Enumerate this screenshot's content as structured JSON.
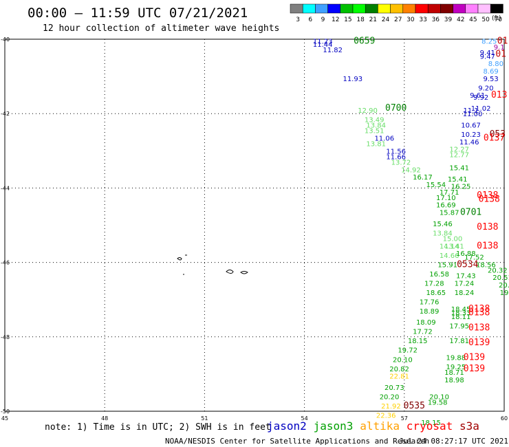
{
  "header": {
    "title": "00:00 – 11:59 UTC 07/21/2021",
    "subtitle": "12 hour collection of altimeter wave heights"
  },
  "legend": {
    "unit": "(ft)",
    "bins": [
      {
        "color": "#808080",
        "label": "3"
      },
      {
        "color": "#00ffff",
        "label": "6"
      },
      {
        "color": "#40a0ff",
        "label": "9"
      },
      {
        "color": "#0000ff",
        "label": "12"
      },
      {
        "color": "#00c000",
        "label": "15"
      },
      {
        "color": "#00ff00",
        "label": "18"
      },
      {
        "color": "#008000",
        "label": "21"
      },
      {
        "color": "#ffff00",
        "label": "24"
      },
      {
        "color": "#ffc000",
        "label": "27"
      },
      {
        "color": "#ff8000",
        "label": "30"
      },
      {
        "color": "#ff0000",
        "label": "33"
      },
      {
        "color": "#c00000",
        "label": "36"
      },
      {
        "color": "#800000",
        "label": "39"
      },
      {
        "color": "#c000c0",
        "label": "42"
      },
      {
        "color": "#ff80ff",
        "label": "45"
      },
      {
        "color": "#ffc0ff",
        "label": "50"
      },
      {
        "color": "#000000",
        "label": "70"
      }
    ]
  },
  "axes": {
    "lon_labels": [
      "45",
      "48",
      "51",
      "54",
      "57",
      "60"
    ],
    "lat_labels": [
      "-40",
      "-42",
      "-44",
      "-46",
      "-48",
      "-50"
    ],
    "lon_range": [
      45,
      60
    ],
    "lat_range": [
      -40,
      -50
    ]
  },
  "satellites": [
    {
      "name": "jason2",
      "color": "#0000c0"
    },
    {
      "name": "jason3",
      "color": "#00a000"
    },
    {
      "name": "altika",
      "color": "#ffa000"
    },
    {
      "name": "cryosat",
      "color": "#ff0000"
    },
    {
      "name": "s3a",
      "color": "#a00000"
    }
  ],
  "note": "note: 1) Time is in UTC; 2) SWH is in feet",
  "credit": "NOAA/NESDIS Center for Satellite Applications and Research",
  "timestamp": "Jul 24 08:27:17 UTC 2021",
  "obs": [
    {
      "lon": 55.8,
      "lat": -40.05,
      "v": "0659",
      "c": "#008000",
      "k": "time"
    },
    {
      "lon": 54.55,
      "lat": -40.05,
      "v": "11.23",
      "c": "#0000c0"
    },
    {
      "lon": 54.55,
      "lat": -40.13,
      "v": "11.44",
      "c": "#0000c0"
    },
    {
      "lon": 54.85,
      "lat": -40.28,
      "v": "11.82",
      "c": "#0000c0"
    },
    {
      "lon": 55.45,
      "lat": -41.05,
      "v": "11.93",
      "c": "#0000c0"
    },
    {
      "lon": 56.75,
      "lat": -41.85,
      "v": "0700",
      "c": "#008000",
      "k": "time"
    },
    {
      "lon": 55.9,
      "lat": -41.9,
      "v": "12.90",
      "c": "#66dd66"
    },
    {
      "lon": 56.1,
      "lat": -42.15,
      "v": "13.49",
      "c": "#66dd66"
    },
    {
      "lon": 56.15,
      "lat": -42.3,
      "v": "13.84",
      "c": "#66dd66"
    },
    {
      "lon": 56.1,
      "lat": -42.45,
      "v": "13.51",
      "c": "#66dd66"
    },
    {
      "lon": 56.4,
      "lat": -42.65,
      "v": "11.06",
      "c": "#0000c0"
    },
    {
      "lon": 56.15,
      "lat": -42.8,
      "v": "13.81",
      "c": "#66dd66"
    },
    {
      "lon": 56.75,
      "lat": -43.0,
      "v": "11.56",
      "c": "#0000c0"
    },
    {
      "lon": 56.75,
      "lat": -43.15,
      "v": "11.66",
      "c": "#0000c0"
    },
    {
      "lon": 56.9,
      "lat": -43.3,
      "v": "13.72",
      "c": "#66dd66"
    },
    {
      "lon": 57.2,
      "lat": -43.5,
      "v": "14.92",
      "c": "#66dd66"
    },
    {
      "lon": 57.55,
      "lat": -43.7,
      "v": "16.17",
      "c": "#00a000"
    },
    {
      "lon": 57.95,
      "lat": -43.9,
      "v": "15.54",
      "c": "#00a000"
    },
    {
      "lon": 58.35,
      "lat": -44.1,
      "v": "17.71",
      "c": "#00a000"
    },
    {
      "lon": 58.25,
      "lat": -44.25,
      "v": "17.10",
      "c": "#00a000"
    },
    {
      "lon": 58.25,
      "lat": -44.45,
      "v": "16.69",
      "c": "#00a000"
    },
    {
      "lon": 58.35,
      "lat": -44.65,
      "v": "15.87",
      "c": "#00a000"
    },
    {
      "lon": 58.15,
      "lat": -44.95,
      "v": "15.46",
      "c": "#00a000"
    },
    {
      "lon": 58.15,
      "lat": -45.2,
      "v": "13.84",
      "c": "#66dd66"
    },
    {
      "lon": 58.45,
      "lat": -45.35,
      "v": "15.00",
      "c": "#66dd66"
    },
    {
      "lon": 58.35,
      "lat": -45.55,
      "v": "14.14",
      "c": "#66dd66"
    },
    {
      "lon": 58.5,
      "lat": -45.55,
      "v": "13.41",
      "c": "#66dd66"
    },
    {
      "lon": 58.35,
      "lat": -45.8,
      "v": "14.66",
      "c": "#66dd66"
    },
    {
      "lon": 58.85,
      "lat": -45.75,
      "v": "16.88",
      "c": "#00a000"
    },
    {
      "lon": 58.3,
      "lat": -46.05,
      "v": "15.91",
      "c": "#00a000"
    },
    {
      "lon": 58.9,
      "lat": -46.05,
      "v": "0534",
      "c": "#a00000",
      "k": "time"
    },
    {
      "lon": 58.05,
      "lat": -46.3,
      "v": "16.58",
      "c": "#00a000"
    },
    {
      "lon": 58.85,
      "lat": -46.35,
      "v": "17.43",
      "c": "#00a000"
    },
    {
      "lon": 57.9,
      "lat": -46.55,
      "v": "17.28",
      "c": "#00a000"
    },
    {
      "lon": 58.8,
      "lat": -46.55,
      "v": "17.24",
      "c": "#00a000"
    },
    {
      "lon": 57.95,
      "lat": -46.8,
      "v": "18.65",
      "c": "#00a000"
    },
    {
      "lon": 58.8,
      "lat": -46.8,
      "v": "18.24",
      "c": "#00a000"
    },
    {
      "lon": 57.75,
      "lat": -47.05,
      "v": "17.76",
      "c": "#00a000"
    },
    {
      "lon": 57.75,
      "lat": -47.3,
      "v": "18.89",
      "c": "#00a000"
    },
    {
      "lon": 58.7,
      "lat": -47.25,
      "v": "18.45",
      "c": "#00a000"
    },
    {
      "lon": 58.7,
      "lat": -47.35,
      "v": "18.33",
      "c": "#00a000"
    },
    {
      "lon": 58.7,
      "lat": -47.45,
      "v": "18.11",
      "c": "#00a000"
    },
    {
      "lon": 57.65,
      "lat": -47.6,
      "v": "18.09",
      "c": "#00a000"
    },
    {
      "lon": 58.65,
      "lat": -47.7,
      "v": "17.95",
      "c": "#00a000"
    },
    {
      "lon": 57.55,
      "lat": -47.85,
      "v": "17.72",
      "c": "#00a000"
    },
    {
      "lon": 57.4,
      "lat": -48.1,
      "v": "18.15",
      "c": "#00a000"
    },
    {
      "lon": 58.65,
      "lat": -48.1,
      "v": "17.81",
      "c": "#00a000"
    },
    {
      "lon": 57.1,
      "lat": -48.35,
      "v": "19.72",
      "c": "#00a000"
    },
    {
      "lon": 56.95,
      "lat": -48.6,
      "v": "20.10",
      "c": "#00a000"
    },
    {
      "lon": 58.55,
      "lat": -48.55,
      "v": "19.88",
      "c": "#00a000"
    },
    {
      "lon": 56.85,
      "lat": -48.85,
      "v": "20.82",
      "c": "#00a000"
    },
    {
      "lon": 58.55,
      "lat": -48.8,
      "v": "19.25",
      "c": "#00a000"
    },
    {
      "lon": 58.5,
      "lat": -48.95,
      "v": "18.71",
      "c": "#00a000"
    },
    {
      "lon": 56.85,
      "lat": -49.05,
      "v": "22.81",
      "c": "#ffd000"
    },
    {
      "lon": 58.5,
      "lat": -49.15,
      "v": "18.98",
      "c": "#00a000"
    },
    {
      "lon": 56.7,
      "lat": -49.35,
      "v": "20.73",
      "c": "#00a000"
    },
    {
      "lon": 56.55,
      "lat": -49.6,
      "v": "20.20",
      "c": "#00a000"
    },
    {
      "lon": 58.05,
      "lat": -49.6,
      "v": "20.10",
      "c": "#00a000"
    },
    {
      "lon": 56.6,
      "lat": -49.85,
      "v": "21.92",
      "c": "#ffd000"
    },
    {
      "lon": 57.3,
      "lat": -49.85,
      "v": "0535",
      "c": "#800000",
      "k": "time"
    },
    {
      "lon": 58.0,
      "lat": -49.75,
      "v": "19.58",
      "c": "#00a000"
    },
    {
      "lon": 56.45,
      "lat": -50.1,
      "v": "22.36",
      "c": "#ffd000"
    },
    {
      "lon": 57.8,
      "lat": -50.3,
      "v": "18.15",
      "c": "#00a000"
    },
    {
      "lon": 59.55,
      "lat": -40.05,
      "v": "8.25",
      "c": "#40a0ff"
    },
    {
      "lon": 59.95,
      "lat": -40.05,
      "v": "01",
      "c": "#c00000",
      "k": "time"
    },
    {
      "lon": 59.85,
      "lat": -40.2,
      "v": "9.1",
      "c": "#a000a0"
    },
    {
      "lon": 59.5,
      "lat": -40.35,
      "v": "9.41",
      "c": "#0000c0"
    },
    {
      "lon": 59.5,
      "lat": -40.45,
      "v": "9.47",
      "c": "#0000c0"
    },
    {
      "lon": 59.9,
      "lat": -40.4,
      "v": "01",
      "c": "#c00000",
      "k": "time"
    },
    {
      "lon": 59.75,
      "lat": -40.65,
      "v": "8.80",
      "c": "#40a0ff"
    },
    {
      "lon": 59.6,
      "lat": -40.85,
      "v": "8.69",
      "c": "#40a0ff"
    },
    {
      "lon": 59.6,
      "lat": -41.05,
      "v": "9.53",
      "c": "#0000c0"
    },
    {
      "lon": 59.45,
      "lat": -41.3,
      "v": "9.20",
      "c": "#0000c0"
    },
    {
      "lon": 59.2,
      "lat": -41.5,
      "v": "9.61",
      "c": "#0000c0"
    },
    {
      "lon": 59.3,
      "lat": -41.55,
      "v": "9.92",
      "c": "#0000c0"
    },
    {
      "lon": 59.85,
      "lat": -41.5,
      "v": "013",
      "c": "#ff0000",
      "k": "time"
    },
    {
      "lon": 59.3,
      "lat": -41.85,
      "v": "11.02",
      "c": "#0000c0"
    },
    {
      "lon": 59.0,
      "lat": -41.9,
      "v": "11.1",
      "c": "#0000c0"
    },
    {
      "lon": 59.05,
      "lat": -42.0,
      "v": "11.00",
      "c": "#0000c0"
    },
    {
      "lon": 59.0,
      "lat": -42.3,
      "v": "10.67",
      "c": "#0000c0"
    },
    {
      "lon": 59.0,
      "lat": -42.55,
      "v": "10.23",
      "c": "#0000c0"
    },
    {
      "lon": 59.8,
      "lat": -42.55,
      "v": "053",
      "c": "#800000",
      "k": "time"
    },
    {
      "lon": 59.7,
      "lat": -42.65,
      "v": "0137",
      "c": "#ff0000",
      "k": "time"
    },
    {
      "lon": 58.95,
      "lat": -42.75,
      "v": "11.46",
      "c": "#0000c0"
    },
    {
      "lon": 58.65,
      "lat": -42.95,
      "v": "12.27",
      "c": "#66dd66"
    },
    {
      "lon": 58.65,
      "lat": -43.1,
      "v": "12.77",
      "c": "#66dd66"
    },
    {
      "lon": 58.65,
      "lat": -43.45,
      "v": "15.41",
      "c": "#00a000"
    },
    {
      "lon": 58.6,
      "lat": -43.75,
      "v": "15.41",
      "c": "#00a000"
    },
    {
      "lon": 58.7,
      "lat": -43.95,
      "v": "16.25",
      "c": "#00a000"
    },
    {
      "lon": 59.5,
      "lat": -44.2,
      "v": "0138",
      "c": "#ff0000",
      "k": "time"
    },
    {
      "lon": 59.55,
      "lat": -44.3,
      "v": "0138",
      "c": "#ff0000",
      "k": "time"
    },
    {
      "lon": 59.0,
      "lat": -44.65,
      "v": "0701",
      "c": "#008000",
      "k": "time"
    },
    {
      "lon": 59.5,
      "lat": -45.05,
      "v": "0138",
      "c": "#ff0000",
      "k": "time"
    },
    {
      "lon": 59.5,
      "lat": -45.55,
      "v": "0138",
      "c": "#ff0000",
      "k": "time"
    },
    {
      "lon": 59.1,
      "lat": -45.85,
      "v": "17.52",
      "c": "#00a000"
    },
    {
      "lon": 59.45,
      "lat": -46.05,
      "v": "18.56",
      "c": "#00a000"
    },
    {
      "lon": 59.8,
      "lat": -46.2,
      "v": "20.32",
      "c": "#00a000"
    },
    {
      "lon": 59.95,
      "lat": -46.4,
      "v": "20.51",
      "c": "#00a000"
    },
    {
      "lon": 60.0,
      "lat": -46.6,
      "v": "20.",
      "c": "#00a000"
    },
    {
      "lon": 60.0,
      "lat": -46.8,
      "v": "19",
      "c": "#00a000"
    },
    {
      "lon": 59.25,
      "lat": -47.25,
      "v": "0138",
      "c": "#ff0000",
      "k": "time"
    },
    {
      "lon": 59.25,
      "lat": -47.35,
      "v": "0138",
      "c": "#ff0000",
      "k": "time"
    },
    {
      "lon": 59.25,
      "lat": -47.75,
      "v": "0138",
      "c": "#ff0000",
      "k": "time"
    },
    {
      "lon": 59.25,
      "lat": -48.15,
      "v": "0139",
      "c": "#ff0000",
      "k": "time"
    },
    {
      "lon": 59.1,
      "lat": -48.55,
      "v": "0139",
      "c": "#ff0000",
      "k": "time"
    },
    {
      "lon": 59.1,
      "lat": -48.85,
      "v": "0139",
      "c": "#ff0000",
      "k": "time"
    }
  ]
}
